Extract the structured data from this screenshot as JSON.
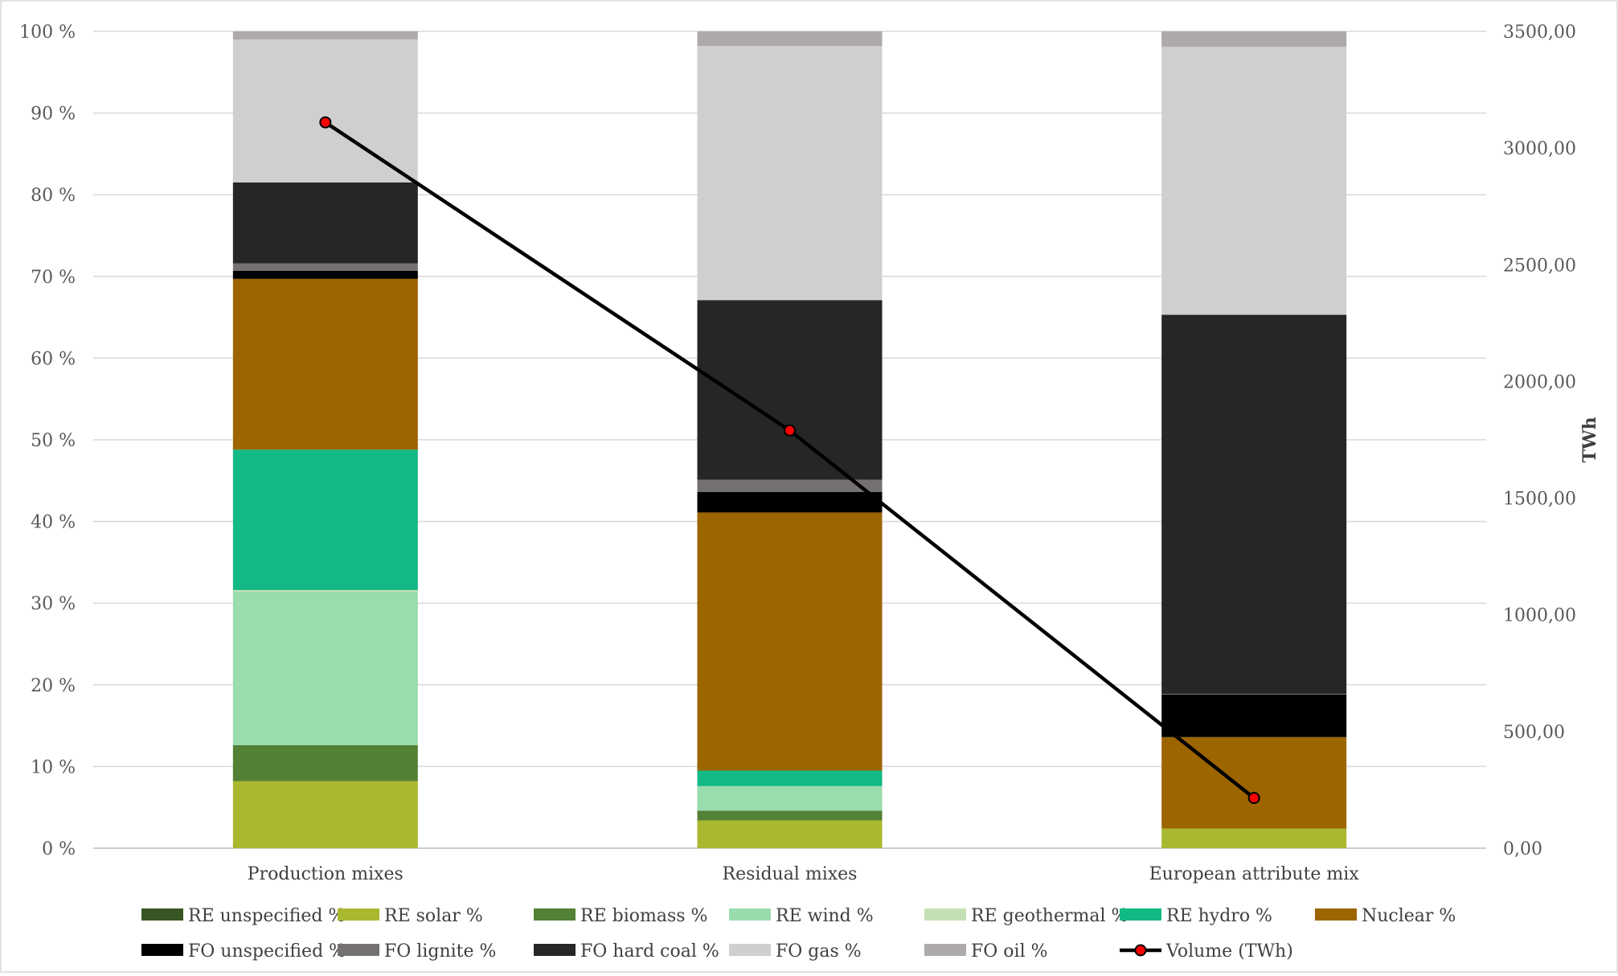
{
  "chart_data": {
    "type": "bar",
    "stacked": true,
    "percent_stacked": true,
    "title": "",
    "categories": [
      "Production mixes",
      "Residual mixes",
      "European attribute mix"
    ],
    "y_left": {
      "ylim": [
        0,
        100
      ],
      "ticks": [
        0,
        10,
        20,
        30,
        40,
        50,
        60,
        70,
        80,
        90,
        100
      ],
      "tick_suffix": " %"
    },
    "y_right": {
      "label": "TWh",
      "ylim": [
        0,
        3500
      ],
      "ticks": [
        0,
        500,
        1000,
        1500,
        2000,
        2500,
        3000,
        3500
      ]
    },
    "grid": true,
    "legend_position": "bottom",
    "series": [
      {
        "name": "RE unspecified %",
        "color": "#375623",
        "values": [
          0.0,
          0.0,
          0.0
        ]
      },
      {
        "name": "RE solar %",
        "color": "#A9B82E",
        "values": [
          8.2,
          3.4,
          2.4
        ]
      },
      {
        "name": "RE biomass %",
        "color": "#538135",
        "values": [
          4.4,
          1.2,
          0.0
        ]
      },
      {
        "name": "RE wind %",
        "color": "#99DCAE",
        "values": [
          18.8,
          3.0,
          0.0
        ]
      },
      {
        "name": "RE geothermal %",
        "color": "#C5E0B4",
        "values": [
          0.2,
          0.0,
          0.0
        ]
      },
      {
        "name": "RE hydro %",
        "color": "#13B985",
        "values": [
          17.2,
          1.9,
          0.0
        ]
      },
      {
        "name": "Nuclear %",
        "color": "#9C6500",
        "values": [
          20.9,
          31.6,
          11.2
        ]
      },
      {
        "name": "FO unspecified %",
        "color": "#000000",
        "values": [
          1.0,
          2.5,
          5.2
        ]
      },
      {
        "name": "FO lignite %",
        "color": "#767171",
        "values": [
          0.9,
          1.5,
          0.1
        ]
      },
      {
        "name": "FO hard coal %",
        "color": "#262626",
        "values": [
          9.9,
          22.0,
          46.4
        ]
      },
      {
        "name": "FO gas %",
        "color": "#D0CECE",
        "values": [
          17.5,
          31.1,
          32.8
        ]
      },
      {
        "name": "FO oil %",
        "color": "#AEAAAA",
        "values": [
          1.0,
          1.8,
          1.9
        ]
      }
    ],
    "line_series": {
      "name": "Volume (TWh)",
      "axis": "right",
      "color": "#000000",
      "marker_color": "#FF0000",
      "values": [
        3110,
        1790,
        215
      ]
    }
  }
}
